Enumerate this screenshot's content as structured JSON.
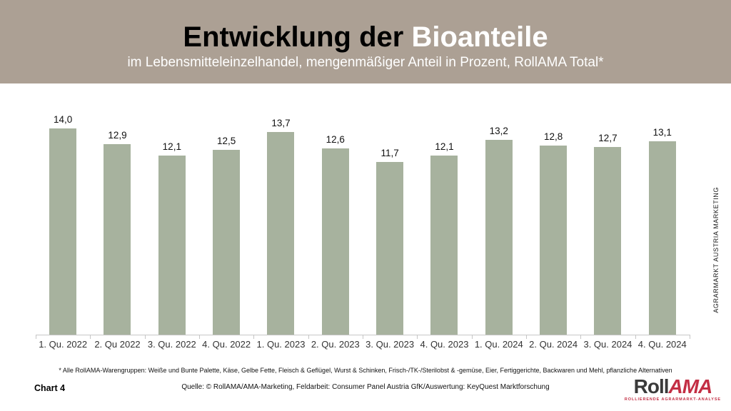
{
  "header": {
    "title_black": "Entwicklung der ",
    "title_accent": "Bioanteile",
    "subtitle": "im Lebensmitteleinzelhandel, mengenmäßiger Anteil in Prozent, RollAMA Total*"
  },
  "chart_data": {
    "type": "bar",
    "title": "Entwicklung der Bioanteile",
    "subtitle": "im Lebensmitteleinzelhandel, mengenmäßiger Anteil in Prozent, RollAMA Total*",
    "categories": [
      "1. Qu. 2022",
      "2. Qu 2022",
      "3. Qu. 2022",
      "4. Qu. 2022",
      "1. Qu. 2023",
      "2. Qu. 2023",
      "3. Qu. 2023",
      "4. Qu. 2023",
      "1. Qu. 2024",
      "2. Qu. 2024",
      "3. Qu. 2024",
      "4. Qu. 2024"
    ],
    "values": [
      14.0,
      12.9,
      12.1,
      12.5,
      13.7,
      12.6,
      11.7,
      12.1,
      13.2,
      12.8,
      12.7,
      13.1
    ],
    "value_labels": [
      "14,0",
      "12,9",
      "12,1",
      "12,5",
      "13,7",
      "12,6",
      "11,7",
      "12,1",
      "13,2",
      "12,8",
      "12,7",
      "13,1"
    ],
    "xlabel": "",
    "ylabel": "",
    "ylim": [
      0,
      14
    ],
    "grid": false,
    "legend": false,
    "bar_color": "#a7b29e",
    "value_label_decimal_separator": ","
  },
  "side_label": "AGRARMARKT AUSTRIA MARKETING",
  "footnote": "* Alle RollAMA-Warengruppen: Weiße und Bunte Palette, Käse, Gelbe Fette, Fleisch & Geflügel, Wurst & Schinken, Frisch-/TK-/Sterilobst & -gemüse, Eier, Fertiggerichte, Backwaren und Mehl, pflanzliche Alternativen",
  "footer": {
    "chart_number": "Chart 4",
    "source": "Quelle: © RollAMA/AMA-Marketing, Feldarbeit: Consumer Panel Austria GfK/Auswertung: KeyQuest Marktforschung"
  },
  "logo": {
    "part_dark": "Roll",
    "part_red": "AMA",
    "tagline": "ROLLIERENDE AGRARMARKT-ANALYSE"
  },
  "colors": {
    "header_bg": "#aca094",
    "bar": "#a7b29e",
    "axis": "#c6c6c6",
    "logo_red": "#c32e44",
    "logo_dark": "#3a3a3a"
  }
}
